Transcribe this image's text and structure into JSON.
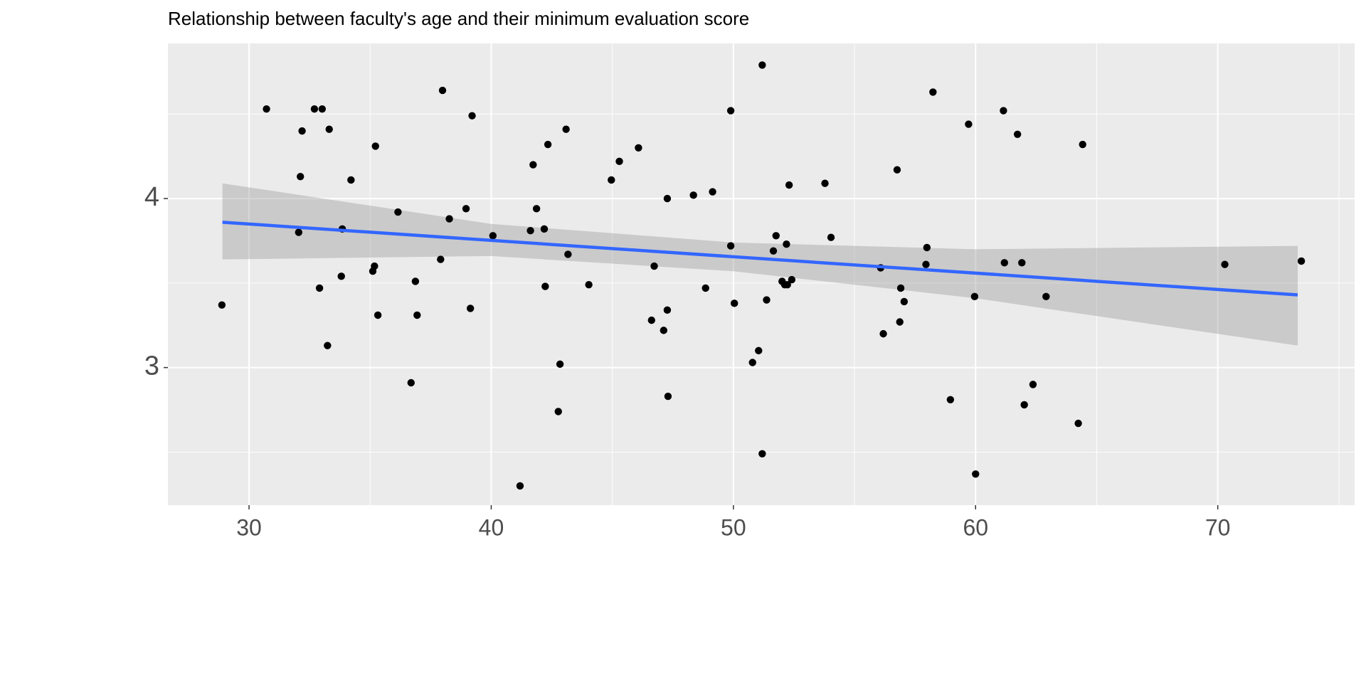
{
  "chart_data": {
    "type": "scatter",
    "title": "Relationship between faculty's age and their minimum evaluation score",
    "x": [
      28.88,
      30.72,
      32.05,
      32.12,
      32.19,
      32.7,
      33.02,
      32.91,
      33.31,
      33.24,
      33.85,
      33.81,
      34.21,
      35.22,
      35.18,
      35.11,
      35.32,
      36.15,
      36.69,
      36.87,
      36.94,
      37.99,
      37.91,
      38.27,
      38.96,
      39.21,
      39.14,
      40.07,
      41.19,
      41.62,
      41.73,
      41.87,
      42.19,
      42.34,
      42.23,
      42.77,
      42.84,
      43.09,
      43.17,
      44.03,
      44.96,
      45.29,
      46.08,
      46.62,
      46.73,
      47.12,
      47.27,
      47.27,
      47.3,
      48.35,
      48.85,
      49.14,
      49.89,
      49.89,
      50.04,
      50.79,
      51.04,
      51.19,
      51.19,
      51.37,
      51.65,
      51.76,
      52.01,
      52.12,
      52.23,
      52.19,
      52.3,
      52.41,
      53.78,
      54.03,
      56.08,
      56.19,
      56.76,
      56.91,
      56.87,
      57.05,
      57.95,
      57.99,
      58.24,
      58.96,
      59.71,
      59.96,
      60.0,
      61.15,
      61.19,
      61.73,
      61.91,
      62.01,
      62.37,
      62.91,
      64.24,
      64.42,
      70.29,
      73.45
    ],
    "y": [
      3.37,
      4.53,
      3.8,
      4.13,
      4.4,
      4.53,
      4.53,
      3.47,
      4.41,
      3.13,
      3.82,
      3.54,
      4.11,
      4.31,
      3.6,
      3.57,
      3.31,
      3.92,
      2.91,
      3.51,
      3.31,
      4.64,
      3.64,
      3.88,
      3.94,
      4.49,
      3.35,
      3.78,
      2.3,
      3.81,
      4.2,
      3.94,
      3.82,
      4.32,
      3.48,
      2.74,
      3.02,
      4.41,
      3.67,
      3.49,
      4.11,
      4.22,
      4.3,
      3.28,
      3.6,
      3.22,
      4.0,
      3.34,
      2.83,
      4.02,
      3.47,
      4.04,
      4.52,
      3.72,
      3.38,
      3.03,
      3.1,
      4.79,
      2.49,
      3.4,
      3.69,
      3.78,
      3.51,
      3.49,
      3.49,
      3.73,
      4.08,
      3.52,
      4.09,
      3.77,
      3.59,
      3.2,
      4.17,
      3.47,
      3.27,
      3.39,
      3.61,
      3.71,
      4.63,
      2.81,
      4.44,
      3.42,
      2.37,
      4.52,
      3.62,
      4.38,
      3.62,
      2.78,
      2.9,
      3.42,
      2.67,
      4.32,
      3.61,
      3.63
    ],
    "color": "#000000",
    "fit": {
      "x": [
        28.9,
        73.3
      ],
      "y": [
        3.86,
        3.43
      ],
      "color": "#3366ff"
    },
    "band": {
      "x": [
        28.9,
        40,
        50,
        60,
        73.3
      ],
      "upper": [
        4.09,
        3.85,
        3.74,
        3.7,
        3.72
      ],
      "lower": [
        3.64,
        3.66,
        3.57,
        3.41,
        3.13
      ],
      "color": "#999999"
    },
    "xlim": [
      26.65,
      75.65
    ],
    "ylim": [
      2.186,
      4.918
    ],
    "xticks": [
      30,
      40,
      50,
      60,
      70
    ],
    "yticks": [
      3,
      4
    ],
    "grid": true
  }
}
